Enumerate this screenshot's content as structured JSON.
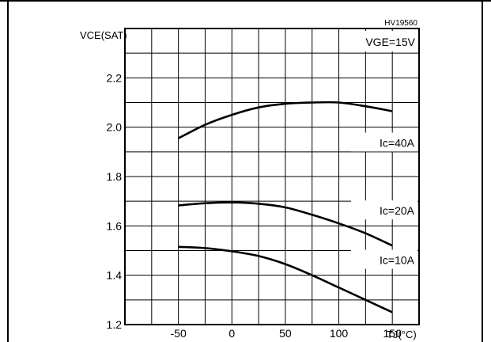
{
  "figure_code": "HV19560",
  "condition_label": "VGE=15V",
  "chart_data": {
    "type": "line",
    "title": "",
    "xlabel": "TJ(°C)",
    "ylabel": "VCE(SAT)",
    "xlim": [
      -100,
      175
    ],
    "ylim": [
      1.2,
      2.4
    ],
    "xticks": [
      -50,
      0,
      50,
      100,
      150
    ],
    "xtick_labels": [
      "-50",
      "0",
      "50",
      "100",
      "150"
    ],
    "yticks": [
      1.2,
      1.4,
      1.6,
      1.8,
      2.0,
      2.2
    ],
    "ytick_labels": [
      "1.2",
      "1.4",
      "1.6",
      "1.8",
      "2.0",
      "2.2"
    ],
    "grid": true,
    "series": [
      {
        "name": "Ic=40A",
        "x": [
          -50,
          -25,
          0,
          25,
          50,
          75,
          100,
          125,
          150
        ],
        "values": [
          1.955,
          2.01,
          2.05,
          2.08,
          2.095,
          2.1,
          2.1,
          2.085,
          2.065
        ]
      },
      {
        "name": "Ic=20A",
        "x": [
          -50,
          -25,
          0,
          25,
          50,
          75,
          100,
          125,
          150
        ],
        "values": [
          1.683,
          1.692,
          1.695,
          1.69,
          1.675,
          1.645,
          1.61,
          1.57,
          1.52
        ]
      },
      {
        "name": "Ic=10A",
        "x": [
          -50,
          -25,
          0,
          25,
          50,
          75,
          100,
          125,
          150
        ],
        "values": [
          1.515,
          1.51,
          1.497,
          1.478,
          1.445,
          1.4,
          1.35,
          1.3,
          1.25
        ]
      }
    ]
  }
}
